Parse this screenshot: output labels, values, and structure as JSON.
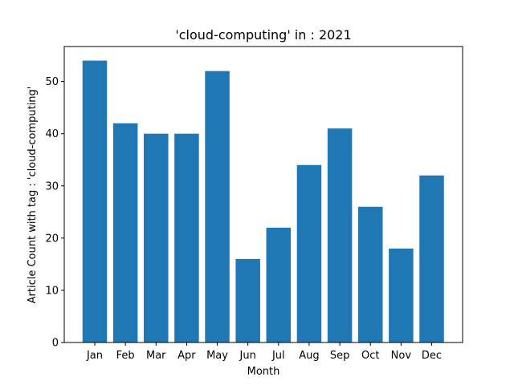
{
  "chart_data": {
    "type": "bar",
    "title": "'cloud-computing' in : 2021",
    "xlabel": "Month",
    "ylabel": "Article Count with tag : 'cloud-computing'",
    "categories": [
      "Jan",
      "Feb",
      "Mar",
      "Apr",
      "May",
      "Jun",
      "Jul",
      "Aug",
      "Sep",
      "Oct",
      "Nov",
      "Dec"
    ],
    "values": [
      54,
      42,
      40,
      40,
      52,
      16,
      22,
      34,
      41,
      26,
      18,
      32
    ],
    "ylim": [
      0,
      56.7
    ],
    "yticks": [
      0,
      10,
      20,
      30,
      40,
      50
    ],
    "bar_color": "#1f77b4",
    "grid": false,
    "legend": false
  }
}
